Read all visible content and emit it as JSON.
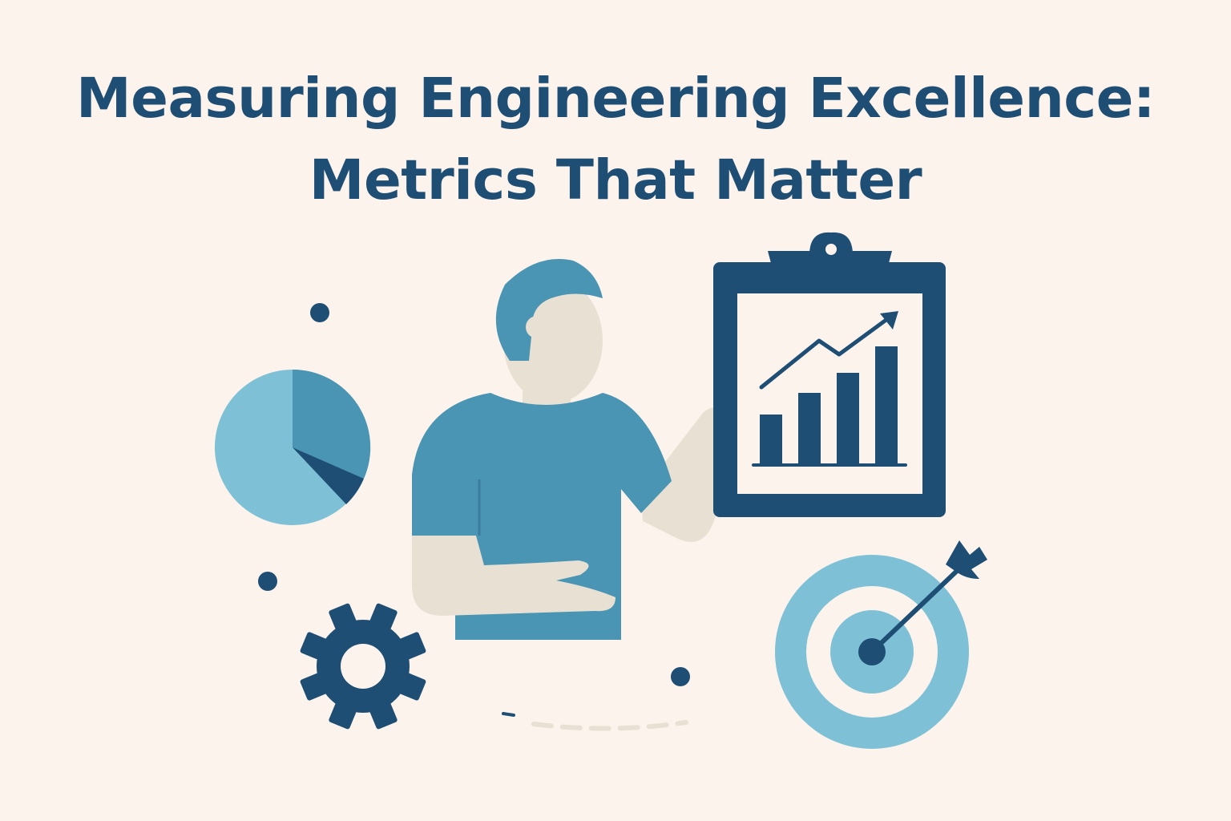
{
  "page": {
    "title_line_1": "Measuring Engineering Excellence:",
    "title_line_2": "Metrics That Matter"
  },
  "colors": {
    "background": "#fcf4ec",
    "navy": "#1f4e74",
    "mid_blue": "#4a94b4",
    "light_blue": "#7ec1d6",
    "skin": "#e8e0d2"
  },
  "illustration": {
    "icons": [
      "person-icon",
      "clipboard-icon",
      "bar-chart-icon",
      "trend-arrow-icon",
      "pie-chart-icon",
      "gear-icon",
      "target-icon",
      "arrow-icon"
    ]
  }
}
